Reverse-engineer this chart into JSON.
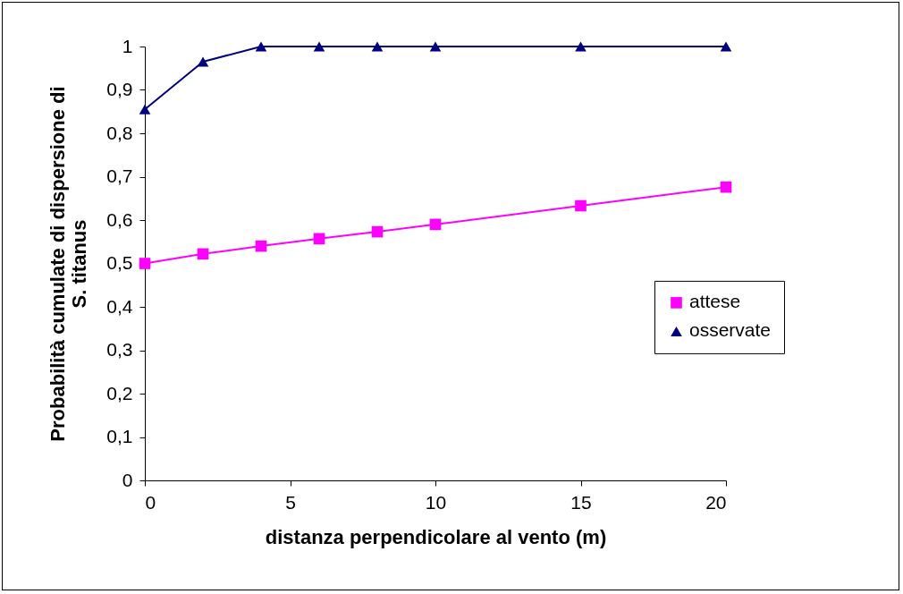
{
  "chart_data": {
    "type": "line",
    "xlabel": "distanza perpendicolare al vento (m)",
    "ylabel": "Probabilità cumulate di dispersione di\nS. titanus",
    "x": [
      0,
      2,
      4,
      6,
      8,
      10,
      15,
      20
    ],
    "series": [
      {
        "name": "attese",
        "color": "#ff00ff",
        "marker": "square",
        "values": [
          0.5,
          0.522,
          0.54,
          0.557,
          0.573,
          0.59,
          0.633,
          0.676
        ]
      },
      {
        "name": "osservate",
        "color": "#000080",
        "marker": "triangle",
        "values": [
          0.855,
          0.965,
          1,
          1,
          1,
          1,
          1,
          1
        ]
      }
    ],
    "xlim": [
      0,
      20
    ],
    "xticks": [
      0,
      5,
      10,
      15,
      20
    ],
    "ylim": [
      0,
      1
    ],
    "yticks": [
      0,
      {
        "value": 0.1,
        "label": "0,1"
      },
      {
        "value": 0.2,
        "label": "0,2"
      },
      {
        "value": 0.3,
        "label": "0,3"
      },
      {
        "value": 0.4,
        "label": "0,4"
      },
      {
        "value": 0.5,
        "label": "0,5"
      },
      {
        "value": 0.6,
        "label": "0,6"
      },
      {
        "value": 0.7,
        "label": "0,7"
      },
      {
        "value": 0.8,
        "label": "0,8"
      },
      {
        "value": 0.9,
        "label": "0,9"
      },
      1
    ],
    "grid": false,
    "legend": "right"
  }
}
